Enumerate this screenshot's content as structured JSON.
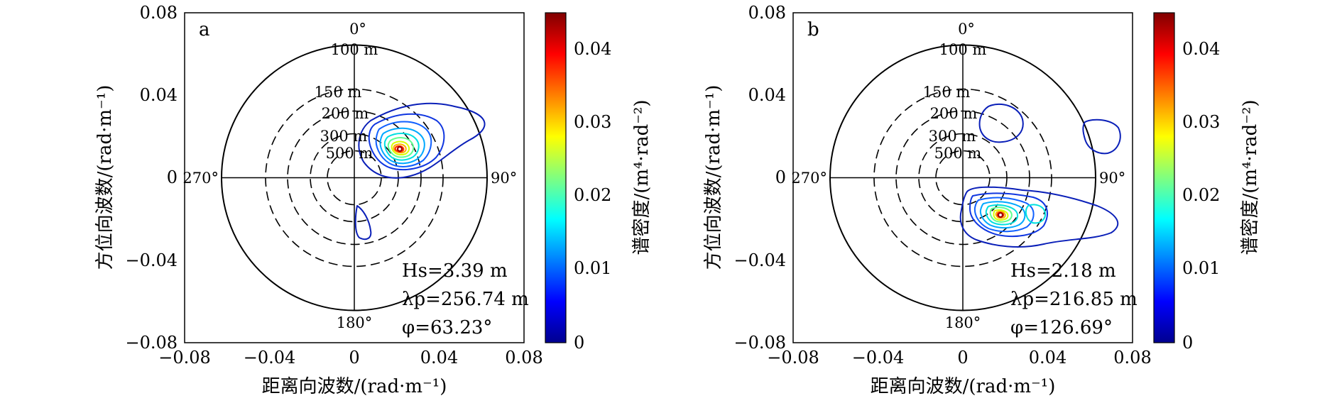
{
  "chart_data": [
    {
      "type": "contour",
      "panel_label": "a",
      "xlabel": "距离向波数/(rad·m⁻¹)",
      "ylabel": "方位向波数/(rad·m⁻¹)",
      "xlim": [
        -0.08,
        0.08
      ],
      "ylim": [
        -0.08,
        0.08
      ],
      "xticks": [
        "−0.08",
        "−0.04",
        "0",
        "0.04",
        "0.08"
      ],
      "yticks": [
        "0.08",
        "0.04",
        "0",
        "−0.04",
        "−0.08"
      ],
      "direction_labels": [
        "0°",
        "90°",
        "180°",
        "270°"
      ],
      "wavelength_rings": [
        {
          "label": "100 m",
          "k": 0.0628,
          "style": "solid"
        },
        {
          "label": "150 m",
          "k": 0.0419,
          "style": "dashed"
        },
        {
          "label": "200 m",
          "k": 0.0314,
          "style": "dashed"
        },
        {
          "label": "300 m",
          "k": 0.0209,
          "style": "dashed"
        },
        {
          "label": "500 m",
          "k": 0.0126,
          "style": "dashed"
        }
      ],
      "spectral_peak": {
        "x": 0.02,
        "y": 0.012,
        "value": 0.045
      },
      "annotations": [
        "Hs=3.39 m",
        "λp=256.74 m",
        "φ=63.23°"
      ],
      "colorbar": {
        "label": "谱密度/(m⁴·rad⁻²)",
        "range": [
          0,
          0.045
        ],
        "ticks": [
          "0.04",
          "0.03",
          "0.02",
          "0.01",
          "0"
        ]
      }
    },
    {
      "type": "contour",
      "panel_label": "b",
      "xlabel": "距离向波数/(rad·m⁻¹)",
      "ylabel": "方位向波数/(rad·m⁻¹)",
      "xlim": [
        -0.08,
        0.08
      ],
      "ylim": [
        -0.08,
        0.08
      ],
      "xticks": [
        "−0.08",
        "−0.04",
        "0",
        "0.04",
        "0.08"
      ],
      "yticks": [
        "0.08",
        "0.04",
        "0",
        "−0.04",
        "−0.08"
      ],
      "direction_labels": [
        "0°",
        "90°",
        "180°",
        "270°"
      ],
      "wavelength_rings": [
        {
          "label": "100 m",
          "k": 0.0628,
          "style": "solid"
        },
        {
          "label": "150 m",
          "k": 0.0419,
          "style": "dashed"
        },
        {
          "label": "200 m",
          "k": 0.0314,
          "style": "dashed"
        },
        {
          "label": "300 m",
          "k": 0.0209,
          "style": "dashed"
        },
        {
          "label": "500 m",
          "k": 0.0126,
          "style": "dashed"
        }
      ],
      "spectral_peak": {
        "x": 0.024,
        "y": -0.016,
        "value": 0.045
      },
      "annotations": [
        "Hs=2.18 m",
        "λp=216.85 m",
        "φ=126.69°"
      ],
      "colorbar": {
        "label": "谱密度/(m⁴·rad⁻²)",
        "range": [
          0,
          0.045
        ],
        "ticks": [
          "0.04",
          "0.03",
          "0.02",
          "0.01",
          "0"
        ]
      }
    }
  ]
}
